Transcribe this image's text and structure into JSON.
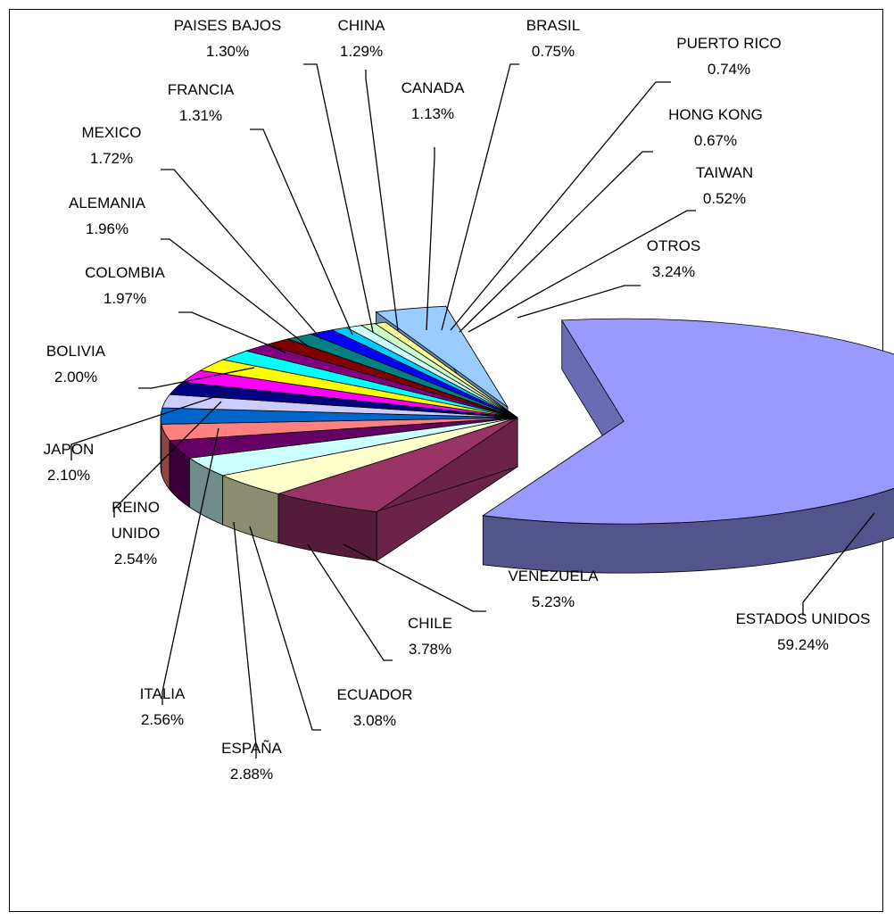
{
  "chart_data": {
    "type": "pie",
    "title": "",
    "slices": [
      {
        "label": "ESTADOS UNIDOS",
        "value": 59.24,
        "value_label": "59.24%",
        "color": "#9999ff"
      },
      {
        "label": "VENEZUELA",
        "value": 5.23,
        "value_label": "5.23%",
        "color": "#993366"
      },
      {
        "label": "CHILE",
        "value": 3.78,
        "value_label": "3.78%",
        "color": "#ffffcc"
      },
      {
        "label": "ECUADOR",
        "value": 3.08,
        "value_label": "3.08%",
        "color": "#ccffff"
      },
      {
        "label": "ESPAÑA",
        "value": 2.88,
        "value_label": "2.88%",
        "color": "#660066"
      },
      {
        "label": "ITALIA",
        "value": 2.56,
        "value_label": "2.56%",
        "color": "#ff8080"
      },
      {
        "label": "REINO UNIDO",
        "value": 2.54,
        "value_label": "2.54%",
        "color": "#0066cc"
      },
      {
        "label": "JAPON",
        "value": 2.1,
        "value_label": "2.10%",
        "color": "#ccccff"
      },
      {
        "label": "BOLIVIA",
        "value": 2.0,
        "value_label": "2.00%",
        "color": "#000080"
      },
      {
        "label": "COLOMBIA",
        "value": 1.97,
        "value_label": "1.97%",
        "color": "#ff00ff"
      },
      {
        "label": "ALEMANIA",
        "value": 1.96,
        "value_label": "1.96%",
        "color": "#ffff00"
      },
      {
        "label": "MEXICO",
        "value": 1.72,
        "value_label": "1.72%",
        "color": "#00ffff"
      },
      {
        "label": "FRANCIA",
        "value": 1.31,
        "value_label": "1.31%",
        "color": "#800080"
      },
      {
        "label": "PAISES BAJOS",
        "value": 1.3,
        "value_label": "1.30%",
        "color": "#800000"
      },
      {
        "label": "CHINA",
        "value": 1.29,
        "value_label": "1.29%",
        "color": "#008080"
      },
      {
        "label": "CANADA",
        "value": 1.13,
        "value_label": "1.13%",
        "color": "#0000ff"
      },
      {
        "label": "BRASIL",
        "value": 0.75,
        "value_label": "0.75%",
        "color": "#00ccff"
      },
      {
        "label": "PUERTO RICO",
        "value": 0.74,
        "value_label": "0.74%",
        "color": "#ccffff"
      },
      {
        "label": "HONG KONG",
        "value": 0.67,
        "value_label": "0.67%",
        "color": "#ccffcc"
      },
      {
        "label": "TAIWAN",
        "value": 0.52,
        "value_label": "0.52%",
        "color": "#ffff99"
      },
      {
        "label": "OTROS",
        "value": 3.24,
        "value_label": "3.24%",
        "color": "#99ccff"
      }
    ],
    "legend": "none"
  }
}
